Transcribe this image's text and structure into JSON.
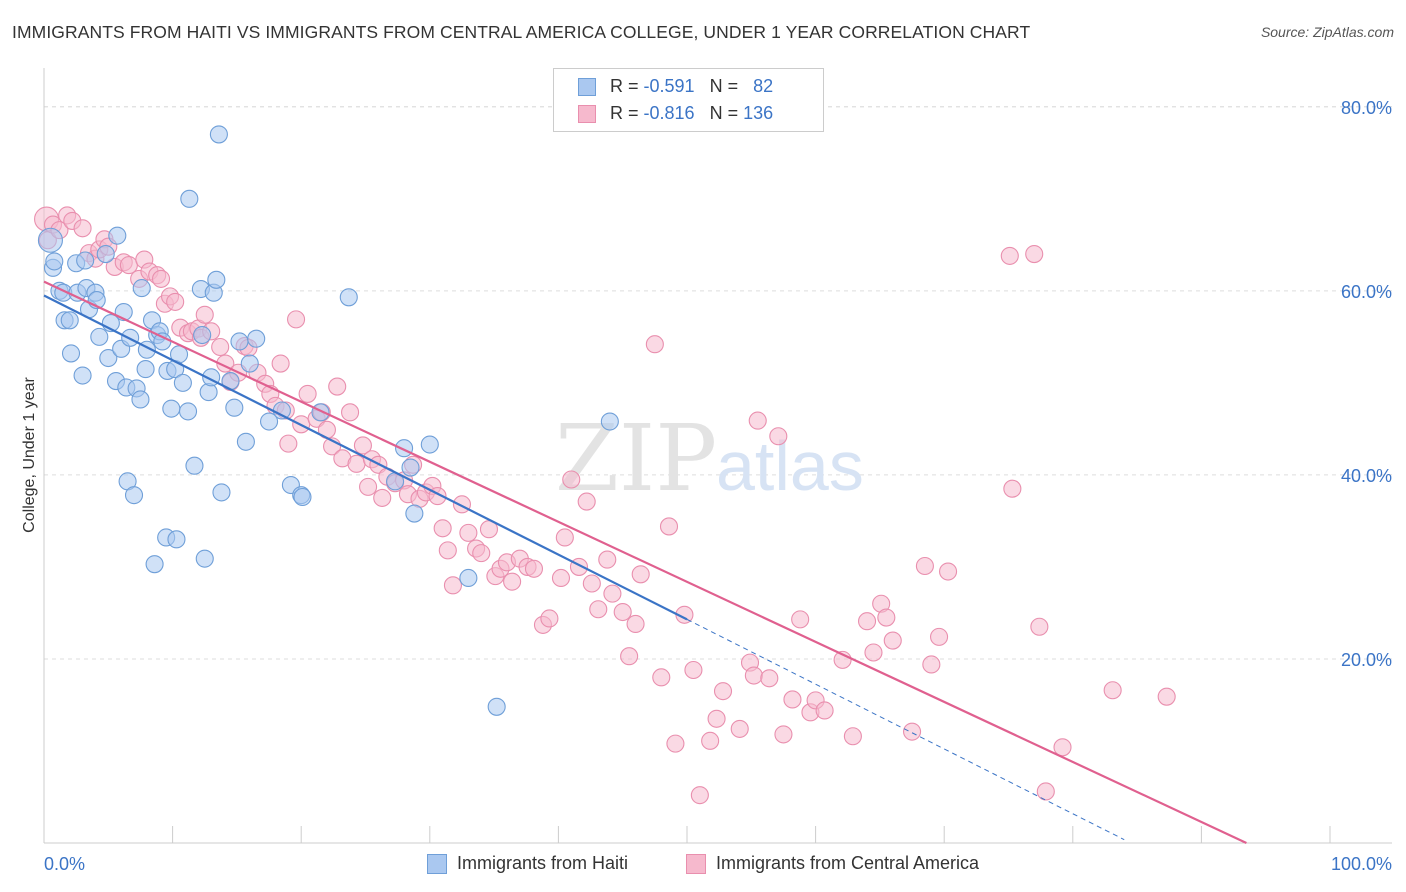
{
  "title": "IMMIGRANTS FROM HAITI VS IMMIGRANTS FROM CENTRAL AMERICA COLLEGE, UNDER 1 YEAR CORRELATION CHART",
  "source": "Source: ZipAtlas.com",
  "watermark": {
    "zip": "ZIP",
    "atlas": "atlas"
  },
  "colors": {
    "haiti_fill": "#aac8f0",
    "haiti_stroke": "#6f9fd8",
    "haiti_line": "#3b74c6",
    "ca_fill": "#f6b9cd",
    "ca_stroke": "#e98fae",
    "ca_line": "#e0608f",
    "value_text": "#3b74c6",
    "grid": "#dddddd"
  },
  "stats": [
    {
      "r_label": "R =",
      "r_value": "-0.591",
      "n_label": "N =",
      "n_value": "82"
    },
    {
      "r_label": "R =",
      "r_value": "-0.816",
      "n_label": "N =",
      "n_value": "136"
    }
  ],
  "legend": [
    {
      "label": "Immigrants from Haiti"
    },
    {
      "label": "Immigrants from Central America"
    }
  ],
  "chart_data": {
    "type": "scatter",
    "title": "IMMIGRANTS FROM HAITI VS IMMIGRANTS FROM CENTRAL AMERICA COLLEGE, UNDER 1 YEAR CORRELATION CHART",
    "xlabel": "",
    "ylabel": "College, Under 1 year",
    "xlim": [
      0,
      100
    ],
    "ylim": [
      0,
      84
    ],
    "x_tick_labels": [
      {
        "value": 0,
        "label": "0.0%"
      },
      {
        "value": 100,
        "label": "100.0%"
      }
    ],
    "x_minor_ticks": [
      0,
      10,
      20,
      30,
      40,
      50,
      60,
      70,
      80,
      90,
      100
    ],
    "y_tick_labels": [
      {
        "value": 20,
        "label": "20.0%"
      },
      {
        "value": 40,
        "label": "40.0%"
      },
      {
        "value": 60,
        "label": "60.0%"
      },
      {
        "value": 80,
        "label": "80.0%"
      }
    ],
    "grid": true,
    "legend_position": "bottom",
    "series": [
      {
        "name": "Immigrants from Haiti",
        "R": -0.591,
        "N": 82,
        "trend": {
          "x0": 0,
          "y0": 59.5,
          "x1": 50,
          "y1": 24.3,
          "dashed_to_x": 84
        },
        "points": [
          [
            0.5,
            65.5
          ],
          [
            0.7,
            62.5
          ],
          [
            0.8,
            63.2
          ],
          [
            1.2,
            60
          ],
          [
            1.5,
            59.8
          ],
          [
            1.6,
            56.8
          ],
          [
            2.0,
            56.8
          ],
          [
            2.1,
            53.2
          ],
          [
            2.5,
            63
          ],
          [
            2.6,
            59.8
          ],
          [
            3.0,
            50.8
          ],
          [
            3.2,
            63.3
          ],
          [
            3.3,
            60.3
          ],
          [
            3.5,
            58
          ],
          [
            4.0,
            59.8
          ],
          [
            4.1,
            59
          ],
          [
            4.3,
            55
          ],
          [
            4.8,
            64
          ],
          [
            5.0,
            52.7
          ],
          [
            5.2,
            56.5
          ],
          [
            5.6,
            50.2
          ],
          [
            5.7,
            66
          ],
          [
            6.0,
            53.7
          ],
          [
            6.2,
            57.7
          ],
          [
            6.4,
            49.5
          ],
          [
            6.5,
            39.3
          ],
          [
            6.7,
            54.9
          ],
          [
            7.0,
            37.8
          ],
          [
            7.2,
            49.4
          ],
          [
            7.5,
            48.2
          ],
          [
            7.6,
            60.3
          ],
          [
            7.9,
            51.5
          ],
          [
            8.0,
            53.6
          ],
          [
            8.4,
            56.8
          ],
          [
            8.6,
            30.3
          ],
          [
            8.8,
            55.2
          ],
          [
            9.0,
            55.6
          ],
          [
            9.2,
            54.5
          ],
          [
            9.5,
            33.2
          ],
          [
            9.6,
            51.3
          ],
          [
            9.9,
            47.2
          ],
          [
            10.2,
            51.5
          ],
          [
            10.3,
            33
          ],
          [
            10.5,
            53.1
          ],
          [
            10.8,
            50
          ],
          [
            11.2,
            46.9
          ],
          [
            11.3,
            70
          ],
          [
            11.7,
            41
          ],
          [
            12.2,
            60.2
          ],
          [
            12.3,
            55.2
          ],
          [
            12.5,
            30.9
          ],
          [
            12.8,
            49
          ],
          [
            13.0,
            50.6
          ],
          [
            13.2,
            59.8
          ],
          [
            13.4,
            61.2
          ],
          [
            13.6,
            77
          ],
          [
            13.8,
            38.1
          ],
          [
            14.5,
            50.2
          ],
          [
            14.8,
            47.3
          ],
          [
            15.2,
            54.5
          ],
          [
            15.7,
            43.6
          ],
          [
            16.0,
            52.1
          ],
          [
            16.5,
            54.8
          ],
          [
            17.5,
            45.8
          ],
          [
            18.5,
            47
          ],
          [
            19.2,
            38.9
          ],
          [
            20.0,
            37.8
          ],
          [
            20.1,
            37.6
          ],
          [
            21.5,
            46.8
          ],
          [
            23.7,
            59.3
          ],
          [
            27.3,
            39.3
          ],
          [
            28.0,
            42.9
          ],
          [
            28.5,
            40.8
          ],
          [
            28.8,
            35.8
          ],
          [
            30.0,
            43.3
          ],
          [
            33.0,
            28.8
          ],
          [
            35.2,
            14.8
          ],
          [
            44.0,
            45.8
          ]
        ]
      },
      {
        "name": "Immigrants from Central America",
        "R": -0.816,
        "N": 136,
        "trend": {
          "x0": 0,
          "y0": 61.0,
          "x1": 93.5,
          "y1": 0
        },
        "points": [
          [
            0.2,
            67.8
          ],
          [
            0.3,
            65.5
          ],
          [
            0.7,
            67.2
          ],
          [
            1.2,
            66.6
          ],
          [
            1.8,
            68.2
          ],
          [
            2.2,
            67.6
          ],
          [
            3.0,
            66.8
          ],
          [
            3.5,
            64.1
          ],
          [
            4.0,
            63.5
          ],
          [
            4.3,
            64.5
          ],
          [
            4.7,
            65.6
          ],
          [
            5.0,
            64.8
          ],
          [
            5.5,
            62.6
          ],
          [
            6.2,
            63.1
          ],
          [
            6.6,
            62.8
          ],
          [
            7.4,
            61.3
          ],
          [
            7.8,
            63.4
          ],
          [
            8.2,
            62.1
          ],
          [
            8.8,
            61.7
          ],
          [
            9.1,
            61.3
          ],
          [
            9.4,
            58.6
          ],
          [
            9.8,
            59.4
          ],
          [
            10.2,
            58.8
          ],
          [
            10.6,
            56
          ],
          [
            11.2,
            55.4
          ],
          [
            11.5,
            55.6
          ],
          [
            12.0,
            55.9
          ],
          [
            12.2,
            54.9
          ],
          [
            12.5,
            57.4
          ],
          [
            13.0,
            55.6
          ],
          [
            13.7,
            53.9
          ],
          [
            14.1,
            52.1
          ],
          [
            14.5,
            50.1
          ],
          [
            15.1,
            51.1
          ],
          [
            15.6,
            54
          ],
          [
            15.9,
            53.8
          ],
          [
            16.6,
            51.1
          ],
          [
            17.2,
            49.9
          ],
          [
            17.6,
            48.8
          ],
          [
            18.0,
            47.5
          ],
          [
            18.4,
            52.1
          ],
          [
            18.8,
            47
          ],
          [
            19.0,
            43.4
          ],
          [
            19.6,
            56.9
          ],
          [
            20.0,
            45.5
          ],
          [
            20.5,
            48.8
          ],
          [
            21.2,
            46.1
          ],
          [
            21.6,
            46.8
          ],
          [
            22.0,
            44.9
          ],
          [
            22.4,
            43.1
          ],
          [
            22.8,
            49.6
          ],
          [
            23.2,
            41.8
          ],
          [
            23.8,
            46.8
          ],
          [
            24.3,
            41.2
          ],
          [
            24.8,
            43.2
          ],
          [
            25.2,
            38.7
          ],
          [
            25.5,
            41.7
          ],
          [
            26.0,
            41.1
          ],
          [
            26.3,
            37.5
          ],
          [
            26.7,
            39.8
          ],
          [
            27.3,
            39.1
          ],
          [
            28.0,
            39.4
          ],
          [
            28.3,
            37.9
          ],
          [
            28.7,
            41.1
          ],
          [
            29.2,
            37.4
          ],
          [
            29.7,
            38.1
          ],
          [
            30.2,
            38.8
          ],
          [
            30.6,
            37.7
          ],
          [
            31.0,
            34.2
          ],
          [
            31.4,
            31.8
          ],
          [
            31.8,
            28
          ],
          [
            32.5,
            36.8
          ],
          [
            33.0,
            33.7
          ],
          [
            33.6,
            32
          ],
          [
            34.0,
            31.5
          ],
          [
            34.6,
            34.1
          ],
          [
            35.1,
            29
          ],
          [
            35.5,
            29.8
          ],
          [
            36.0,
            30.5
          ],
          [
            36.4,
            28.4
          ],
          [
            37.0,
            30.9
          ],
          [
            37.6,
            30
          ],
          [
            38.1,
            29.8
          ],
          [
            38.8,
            23.7
          ],
          [
            39.3,
            24.4
          ],
          [
            40.2,
            28.8
          ],
          [
            40.5,
            33.2
          ],
          [
            41.0,
            39.5
          ],
          [
            41.6,
            30
          ],
          [
            42.2,
            37.1
          ],
          [
            42.6,
            28.2
          ],
          [
            43.1,
            25.4
          ],
          [
            43.8,
            30.8
          ],
          [
            44.2,
            27.1
          ],
          [
            45.0,
            25.1
          ],
          [
            45.5,
            20.3
          ],
          [
            46.0,
            23.8
          ],
          [
            46.4,
            29.2
          ],
          [
            47.5,
            54.2
          ],
          [
            48.0,
            18
          ],
          [
            48.6,
            34.4
          ],
          [
            49.1,
            10.8
          ],
          [
            49.8,
            24.8
          ],
          [
            50.5,
            18.8
          ],
          [
            51.0,
            5.2
          ],
          [
            51.8,
            11.1
          ],
          [
            52.3,
            13.5
          ],
          [
            52.8,
            16.5
          ],
          [
            54.1,
            12.4
          ],
          [
            54.9,
            19.6
          ],
          [
            55.2,
            18.2
          ],
          [
            55.5,
            45.9
          ],
          [
            56.4,
            17.9
          ],
          [
            57.1,
            44.2
          ],
          [
            57.5,
            11.8
          ],
          [
            58.2,
            15.6
          ],
          [
            58.8,
            24.3
          ],
          [
            59.6,
            14.2
          ],
          [
            60.0,
            15.5
          ],
          [
            60.7,
            14.4
          ],
          [
            62.1,
            19.9
          ],
          [
            62.9,
            11.6
          ],
          [
            64.0,
            24.1
          ],
          [
            64.5,
            20.7
          ],
          [
            65.1,
            26
          ],
          [
            65.5,
            24.5
          ],
          [
            66.0,
            22
          ],
          [
            67.5,
            12.1
          ],
          [
            68.5,
            30.1
          ],
          [
            69.0,
            19.4
          ],
          [
            69.6,
            22.4
          ],
          [
            70.3,
            29.5
          ],
          [
            75.1,
            63.8
          ],
          [
            75.3,
            38.5
          ],
          [
            77.0,
            64
          ],
          [
            77.4,
            23.5
          ],
          [
            77.9,
            5.6
          ],
          [
            79.2,
            10.4
          ],
          [
            83.1,
            16.6
          ],
          [
            87.3,
            15.9
          ]
        ]
      }
    ]
  }
}
